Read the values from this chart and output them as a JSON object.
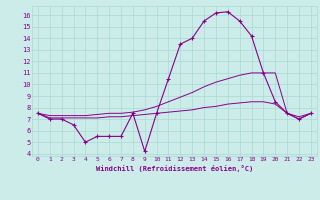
{
  "xlabel": "Windchill (Refroidissement éolien,°C)",
  "ylabel": "",
  "bg_color": "#ccecea",
  "grid_color": "#aad8d4",
  "line_color": "#880088",
  "text_color": "#880088",
  "xlim": [
    -0.5,
    23.5
  ],
  "ylim": [
    3.8,
    16.8
  ],
  "yticks": [
    4,
    5,
    6,
    7,
    8,
    9,
    10,
    11,
    12,
    13,
    14,
    15,
    16
  ],
  "xticks": [
    0,
    1,
    2,
    3,
    4,
    5,
    6,
    7,
    8,
    9,
    10,
    11,
    12,
    13,
    14,
    15,
    16,
    17,
    18,
    19,
    20,
    21,
    22,
    23
  ],
  "series": [
    {
      "x": [
        0,
        1,
        2,
        3,
        4,
        5,
        6,
        7,
        8,
        9,
        10,
        11,
        12,
        13,
        14,
        15,
        16,
        17,
        18,
        19,
        20,
        21,
        22,
        23
      ],
      "y": [
        7.5,
        7.0,
        7.0,
        6.5,
        5.0,
        5.5,
        5.5,
        5.5,
        7.5,
        4.2,
        7.5,
        10.5,
        13.5,
        14.0,
        15.5,
        16.2,
        16.3,
        15.5,
        14.2,
        11.0,
        8.5,
        7.5,
        7.0,
        7.5
      ],
      "has_marker": true
    },
    {
      "x": [
        0,
        1,
        2,
        3,
        4,
        5,
        6,
        7,
        8,
        9,
        10,
        11,
        12,
        13,
        14,
        15,
        16,
        17,
        18,
        19,
        20,
        21,
        22,
        23
      ],
      "y": [
        7.5,
        7.3,
        7.3,
        7.3,
        7.3,
        7.4,
        7.5,
        7.5,
        7.6,
        7.8,
        8.1,
        8.5,
        8.9,
        9.3,
        9.8,
        10.2,
        10.5,
        10.8,
        11.0,
        11.0,
        11.0,
        7.5,
        7.2,
        7.5
      ],
      "has_marker": false
    },
    {
      "x": [
        0,
        1,
        2,
        3,
        4,
        5,
        6,
        7,
        8,
        9,
        10,
        11,
        12,
        13,
        14,
        15,
        16,
        17,
        18,
        19,
        20,
        21,
        22,
        23
      ],
      "y": [
        7.5,
        7.1,
        7.1,
        7.1,
        7.1,
        7.1,
        7.2,
        7.2,
        7.3,
        7.4,
        7.5,
        7.6,
        7.7,
        7.8,
        8.0,
        8.1,
        8.3,
        8.4,
        8.5,
        8.5,
        8.3,
        7.5,
        7.0,
        7.5
      ],
      "has_marker": false
    }
  ]
}
